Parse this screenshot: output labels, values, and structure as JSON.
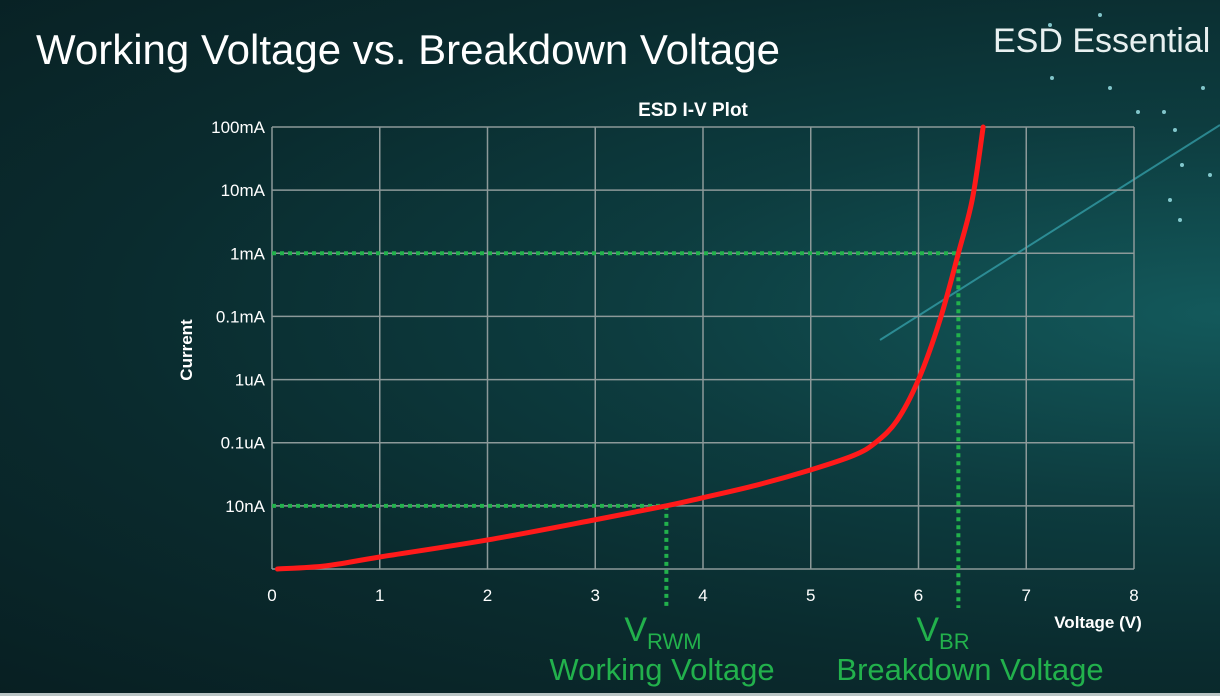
{
  "slide": {
    "title": "Working Voltage vs. Breakdown Voltage",
    "brand": "ESD Essential"
  },
  "chart_data": {
    "type": "line",
    "title": "ESD I-V Plot",
    "xlabel": "Voltage (V)",
    "ylabel": "Current",
    "xlim": [
      0,
      8
    ],
    "x_ticks": [
      "0",
      "1",
      "2",
      "3",
      "4",
      "5",
      "6",
      "7",
      "8"
    ],
    "y_scale": "log",
    "y_tick_labels_bottom_to_top": [
      "",
      "10nA",
      "0.1uA",
      "1uA",
      "0.1mA",
      "1mA",
      "10mA",
      "100mA"
    ],
    "grid": true,
    "series": [
      {
        "color": "#ff1a1a",
        "note_y_in_gridline_index": true,
        "x": [
          0.05,
          0.5,
          1,
          2,
          3,
          3.66,
          4,
          4.5,
          5,
          5.4,
          5.6,
          5.8,
          6.0,
          6.2,
          6.37,
          6.5,
          6.6
        ],
        "y": [
          0,
          0.05,
          0.19,
          0.46,
          0.78,
          1.0,
          1.13,
          1.33,
          1.57,
          1.8,
          2.0,
          2.35,
          3.0,
          3.95,
          5.0,
          5.86,
          7.0
        ]
      }
    ],
    "markers": [
      {
        "x": 3.66,
        "y_label": "10nA",
        "label_main": "V",
        "label_sub": "RWM",
        "caption": "Working Voltage"
      },
      {
        "x": 6.37,
        "y_label": "1mA",
        "label_main": "V",
        "label_sub": "BR",
        "caption": "Breakdown Voltage"
      }
    ],
    "marker_color": "#22b14c"
  }
}
